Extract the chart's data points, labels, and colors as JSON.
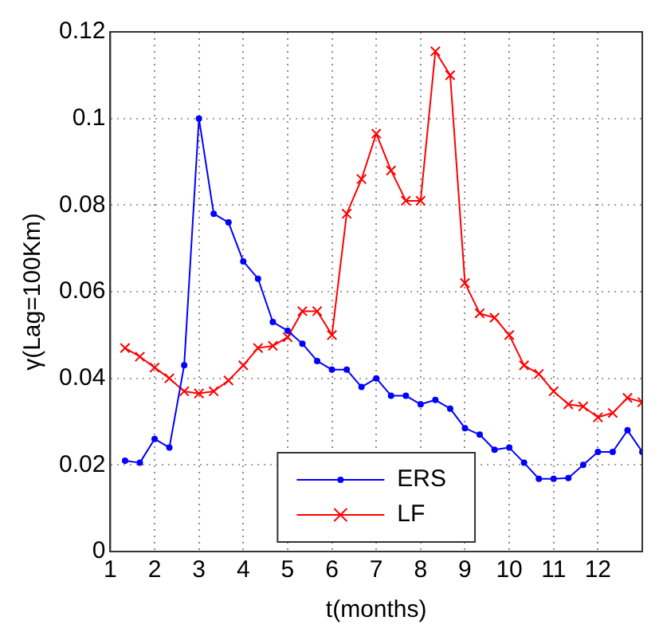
{
  "chart_data": {
    "type": "line",
    "xlabel": "t(months)",
    "ylabel": "γ(Lag=100Km)",
    "xlim": [
      1,
      13
    ],
    "xticks": [
      1,
      2,
      3,
      4,
      5,
      6,
      7,
      8,
      9,
      10,
      11,
      12
    ],
    "ylim": [
      0,
      0.12
    ],
    "yticks": [
      0,
      0.02,
      0.04,
      0.06,
      0.08,
      0.1,
      0.12
    ],
    "grid": true,
    "legend": "bottom",
    "line_style": "solid",
    "x": [
      1.333,
      1.667,
      2,
      2.333,
      2.667,
      3,
      3.333,
      3.667,
      4,
      4.333,
      4.667,
      5,
      5.333,
      5.667,
      6,
      6.333,
      6.667,
      7,
      7.333,
      7.667,
      8,
      8.333,
      8.667,
      9,
      9.333,
      9.667,
      10,
      10.333,
      10.667,
      11,
      11.333,
      11.667,
      12,
      12.333,
      12.667,
      13
    ],
    "series": [
      {
        "name": "ERS",
        "color": "#0000ff",
        "marker": "circle",
        "values": [
          0.021,
          0.0205,
          0.026,
          0.024,
          0.043,
          0.1,
          0.078,
          0.076,
          0.067,
          0.063,
          0.053,
          0.051,
          0.048,
          0.044,
          0.042,
          0.042,
          0.038,
          0.04,
          0.036,
          0.036,
          0.034,
          0.035,
          0.033,
          0.0285,
          0.027,
          0.0235,
          0.024,
          0.0205,
          0.0168,
          0.0168,
          0.017,
          0.02,
          0.023,
          0.023,
          0.028,
          0.023
        ]
      },
      {
        "name": "LF",
        "color": "#ff0000",
        "marker": "cross",
        "values": [
          0.047,
          0.045,
          0.0425,
          0.04,
          0.037,
          0.0365,
          0.037,
          0.0395,
          0.043,
          0.047,
          0.0475,
          0.0495,
          0.0555,
          0.0555,
          0.05,
          0.078,
          0.086,
          0.0965,
          0.088,
          0.081,
          0.081,
          0.1155,
          0.11,
          0.062,
          0.055,
          0.054,
          0.05,
          0.043,
          0.041,
          0.037,
          0.034,
          0.0335,
          0.031,
          0.032,
          0.0355,
          0.0345
        ]
      }
    ]
  }
}
